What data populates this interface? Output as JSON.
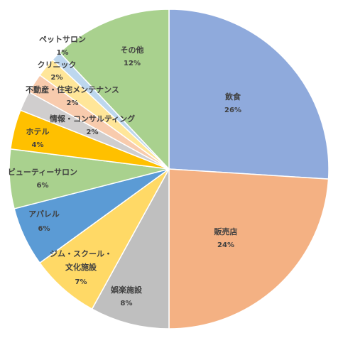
{
  "chart_data": {
    "type": "pie",
    "start_angle_deg": 0,
    "direction": "clockwise",
    "slices": [
      {
        "label": "飲食",
        "value": 26,
        "value_label": "26%",
        "color": "#8FAADC"
      },
      {
        "label": "販売店",
        "value": 24,
        "value_label": "24%",
        "color": "#F4B183"
      },
      {
        "label": "娯楽施設",
        "value": 8,
        "value_label": "8%",
        "color": "#BFBFBF"
      },
      {
        "label": "ジム・スクール・文化施設",
        "value": 7,
        "value_label": "7%",
        "color": "#FFD966"
      },
      {
        "label": "アパレル",
        "value": 6,
        "value_label": "6%",
        "color": "#5B9BD5"
      },
      {
        "label": "ビューティーサロン",
        "value": 6,
        "value_label": "6%",
        "color": "#A9D18E"
      },
      {
        "label": "ホテル",
        "value": 4,
        "value_label": "4%",
        "color": "#FFC000"
      },
      {
        "label": "情報・コンサルティング",
        "value": 2,
        "value_label": "2%",
        "color": "#D0CECE"
      },
      {
        "label": "不動産・住宅メンテナンス",
        "value": 2,
        "value_label": "2%",
        "color": "#F8CBAD"
      },
      {
        "label": "クリニック",
        "value": 2,
        "value_label": "2%",
        "color": "#FFE699"
      },
      {
        "label": "ペットサロン",
        "value": 1,
        "value_label": "1%",
        "color": "#BDD7EE"
      },
      {
        "label": "その他",
        "value": 12,
        "value_label": "12%",
        "color": "#A9D18E"
      }
    ],
    "legend": "none",
    "title": ""
  }
}
